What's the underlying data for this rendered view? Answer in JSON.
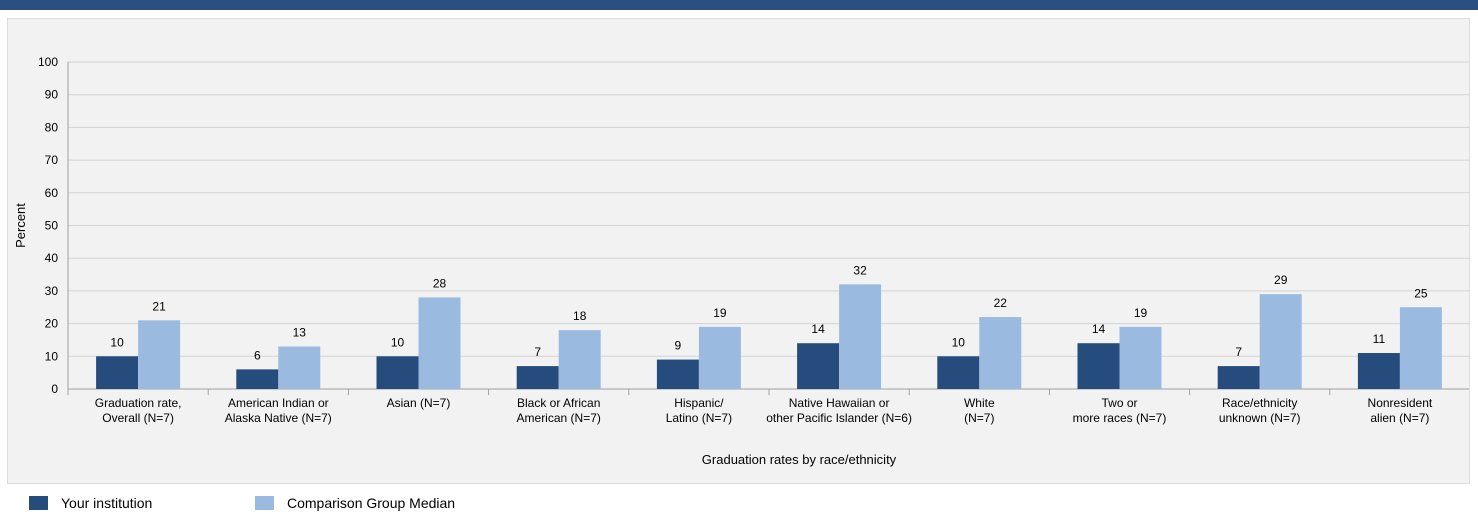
{
  "colors": {
    "institution": "#254c7c",
    "median": "#9bbae0",
    "grid": "#d3d3d3",
    "axis": "#a0a0a0",
    "header_bar": "#2a4f80"
  },
  "legend": {
    "institution_label": "Your institution",
    "median_label": "Comparison Group Median"
  },
  "chart_data": {
    "type": "bar",
    "title": "",
    "xlabel": "Graduation rates by race/ethnicity",
    "ylabel": "Percent",
    "ylim": [
      0,
      100
    ],
    "yticks": [
      0,
      10,
      20,
      30,
      40,
      50,
      60,
      70,
      80,
      90,
      100
    ],
    "grid": true,
    "legend_position": "bottom-left",
    "categories": [
      [
        "Graduation rate,",
        "Overall (N=7)"
      ],
      [
        "American Indian or",
        "Alaska Native (N=7)"
      ],
      [
        "Asian (N=7)"
      ],
      [
        "Black or African",
        "American (N=7)"
      ],
      [
        "Hispanic/",
        "Latino (N=7)"
      ],
      [
        "Native Hawaiian or",
        "other Pacific Islander (N=6)"
      ],
      [
        "White",
        "(N=7)"
      ],
      [
        "Two or",
        "more races (N=7)"
      ],
      [
        "Race/ethnicity",
        "unknown (N=7)"
      ],
      [
        "Nonresident",
        "alien (N=7)"
      ]
    ],
    "series": [
      {
        "name": "Your institution",
        "values": [
          10,
          6,
          10,
          7,
          9,
          14,
          10,
          14,
          7,
          11
        ]
      },
      {
        "name": "Comparison Group Median",
        "values": [
          21,
          13,
          28,
          18,
          19,
          32,
          22,
          19,
          29,
          25
        ]
      }
    ]
  }
}
